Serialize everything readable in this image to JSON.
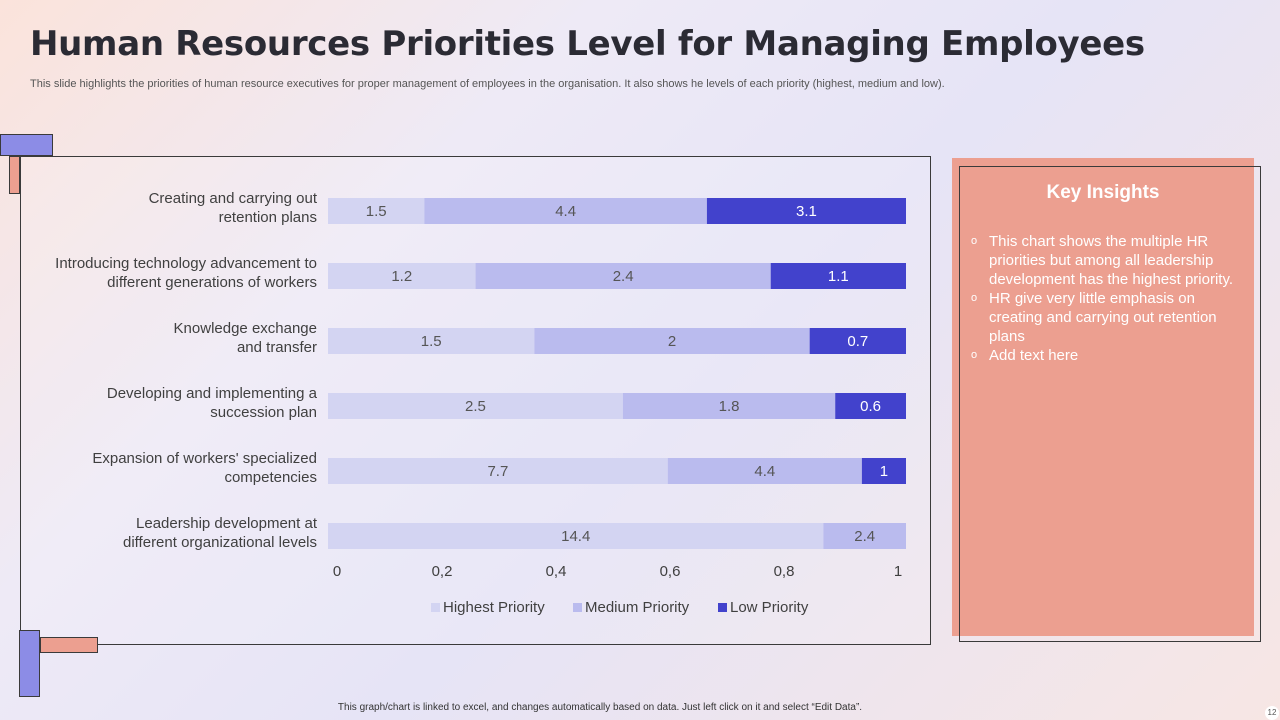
{
  "slide": {
    "title": "Human Resources Priorities Level for Managing Employees",
    "subtitle": "This slide highlights the priorities of human resource executives for proper management of employees in the organisation. It also shows he levels of each priority (highest, medium and low).",
    "footer": "This graph/chart is linked to excel, and changes automatically based on data.  Just left click on it and select “Edit Data”.",
    "page_number": "12"
  },
  "insights": {
    "title": "Key Insights",
    "items": [
      "This chart shows the multiple HR priorities but among all leadership development has the highest priority.",
      "HR give very little  emphasis on creating and carrying out retention plans",
      "Add text here"
    ]
  },
  "colors": {
    "highest": "#d3d4f2",
    "medium": "#babbee",
    "low": "#4242cc",
    "insights_bg": "#ec9f90",
    "deco_purple": "#8c8ce6",
    "deco_salmon": "#ec9f90"
  },
  "chart_data": {
    "type": "bar",
    "orientation": "horizontal",
    "stacked": "100%",
    "categories": [
      "Creating and carrying out retention plans",
      "Introducing technology advancement to different generations of workers",
      "Knowledge exchange and transfer",
      "Developing and implementing a succession plan",
      "Expansion of workers' specialized competencies",
      "Leadership development at different organizational levels"
    ],
    "category_lines": [
      [
        "Creating and carrying out",
        "retention plans"
      ],
      [
        "Introducing technology advancement to",
        "different generations of workers"
      ],
      [
        "Knowledge exchange",
        "and transfer"
      ],
      [
        "Developing and implementing a",
        "succession plan"
      ],
      [
        "Expansion of workers' specialized",
        "competencies"
      ],
      [
        "Leadership development at",
        "different organizational levels"
      ]
    ],
    "series": [
      {
        "name": "Highest Priority",
        "values": [
          1.5,
          1.2,
          1.5,
          2.5,
          7.7,
          14.4
        ]
      },
      {
        "name": "Medium Priority",
        "values": [
          4.4,
          2.4,
          2,
          1.8,
          4.4,
          2.4
        ]
      },
      {
        "name": "Low Priority",
        "values": [
          3.1,
          1.1,
          0.7,
          0.6,
          1,
          null
        ]
      }
    ],
    "xlim": [
      0,
      1
    ],
    "xticks": [
      "0",
      "0,2",
      "0,4",
      "0,6",
      "0,8",
      "1"
    ],
    "legend_position": "bottom",
    "title": "",
    "xlabel": "",
    "ylabel": ""
  }
}
